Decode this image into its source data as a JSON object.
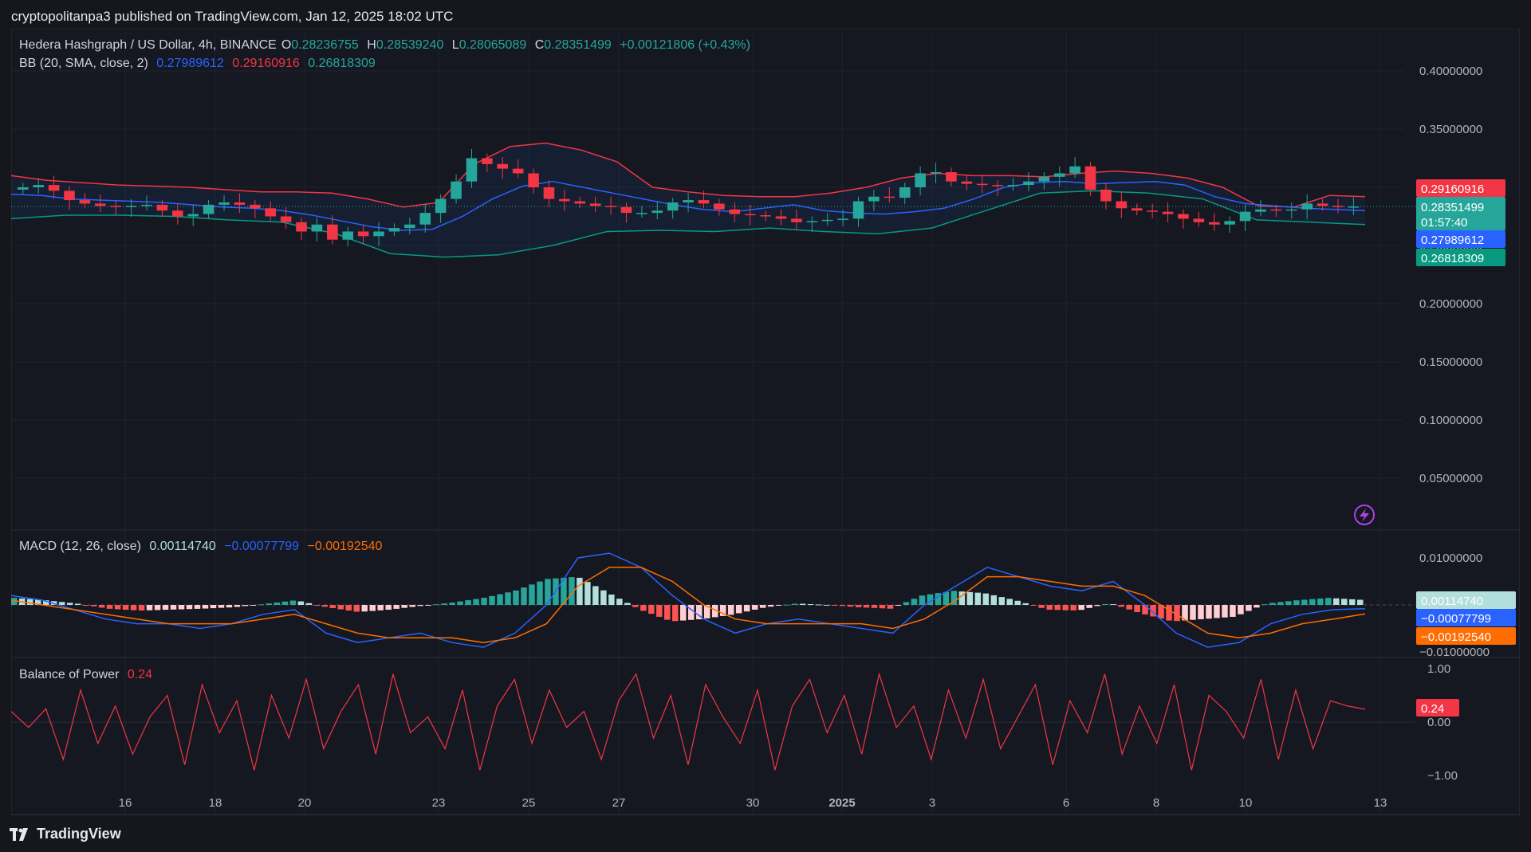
{
  "header": {
    "publisher": "cryptopolitanpa3 published on TradingView.com, Jan 12, 2025 18:02 UTC"
  },
  "legend_main": {
    "symbol": "Hedera Hashgraph / US Dollar, 4h, BINANCE",
    "o_label": "O",
    "o_value": "0.28236755",
    "h_label": "H",
    "h_value": "0.28539240",
    "l_label": "L",
    "l_value": "0.28065089",
    "c_label": "C",
    "c_value": "0.28351499",
    "change": "+0.00121806 (+0.43%)"
  },
  "legend_bb": {
    "label": "BB (20, SMA, close, 2)",
    "basis": "0.27989612",
    "upper": "0.29160916",
    "lower": "0.26818309"
  },
  "legend_macd": {
    "label": "MACD (12, 26, close)",
    "hist": "0.00114740",
    "macd": "−0.00077799",
    "signal": "−0.00192540"
  },
  "legend_bop": {
    "label": "Balance of Power",
    "value": "0.24"
  },
  "price_tags": {
    "upper": "0.29160916",
    "close": "0.28351499",
    "countdown": "01:57:40",
    "basis": "0.27989612",
    "lower": "0.26818309"
  },
  "macd_tags": {
    "hist": "0.00114740",
    "macd": "−0.00077799",
    "signal": "−0.00192540"
  },
  "bop_tag": "0.24",
  "brand": "TradingView",
  "colors": {
    "up": "#26a69a",
    "down": "#f23645",
    "bb_basis": "#2962ff",
    "bb_upper": "#f23645",
    "bb_lower": "#089981",
    "macd": "#2962ff",
    "signal": "#ff6d00",
    "bop": "#f23645",
    "hist_up_strong": "#26a69a",
    "hist_up_weak": "#b2dfdb",
    "hist_down_strong": "#ff5252",
    "hist_down_weak": "#ffcdd2"
  },
  "chart_data": [
    {
      "type": "candlestick",
      "name": "price",
      "y_ticks": [
        "0.40000000",
        "0.35000000",
        "0.30000000",
        "0.25000000",
        "0.20000000",
        "0.15000000",
        "0.10000000",
        "0.05000000"
      ],
      "y_tick_values": [
        0.4,
        0.35,
        0.3,
        0.25,
        0.2,
        0.15,
        0.1,
        0.05
      ],
      "x_ticks": [
        "16",
        "18",
        "20",
        "23",
        "25",
        "27",
        "30",
        "2025",
        "3",
        "6",
        "8",
        "10",
        "13"
      ],
      "close_series": [
        0.3,
        0.302,
        0.297,
        0.289,
        0.286,
        0.284,
        0.283,
        0.284,
        0.285,
        0.28,
        0.275,
        0.277,
        0.285,
        0.287,
        0.285,
        0.282,
        0.275,
        0.27,
        0.262,
        0.268,
        0.255,
        0.262,
        0.258,
        0.262,
        0.265,
        0.268,
        0.278,
        0.29,
        0.305,
        0.325,
        0.32,
        0.316,
        0.312,
        0.3,
        0.29,
        0.288,
        0.286,
        0.284,
        0.283,
        0.278,
        0.278,
        0.28,
        0.287,
        0.289,
        0.286,
        0.281,
        0.277,
        0.276,
        0.275,
        0.273,
        0.27,
        0.271,
        0.272,
        0.273,
        0.288,
        0.292,
        0.291,
        0.3,
        0.312,
        0.313,
        0.305,
        0.303,
        0.302,
        0.301,
        0.302,
        0.305,
        0.309,
        0.312,
        0.318,
        0.298,
        0.288,
        0.282,
        0.28,
        0.279,
        0.277,
        0.273,
        0.27,
        0.268,
        0.271,
        0.279,
        0.281,
        0.28,
        0.281,
        0.286,
        0.284,
        0.283,
        0.2835
      ],
      "bb_basis": [
        0.294,
        0.293,
        0.29,
        0.289,
        0.288,
        0.287,
        0.285,
        0.283,
        0.282,
        0.28,
        0.276,
        0.271,
        0.266,
        0.263,
        0.264,
        0.275,
        0.29,
        0.301,
        0.305,
        0.3,
        0.295,
        0.29,
        0.285,
        0.281,
        0.279,
        0.282,
        0.285,
        0.28,
        0.278,
        0.277,
        0.279,
        0.282,
        0.29,
        0.3,
        0.304,
        0.305,
        0.303,
        0.304,
        0.305,
        0.302,
        0.292,
        0.286,
        0.284,
        0.282,
        0.281,
        0.28
      ],
      "bb_upper": [
        0.31,
        0.306,
        0.304,
        0.302,
        0.301,
        0.3,
        0.298,
        0.296,
        0.296,
        0.295,
        0.29,
        0.283,
        0.287,
        0.32,
        0.335,
        0.338,
        0.332,
        0.322,
        0.3,
        0.296,
        0.293,
        0.292,
        0.292,
        0.295,
        0.3,
        0.308,
        0.312,
        0.31,
        0.31,
        0.309,
        0.312,
        0.314,
        0.312,
        0.308,
        0.3,
        0.284,
        0.283,
        0.293,
        0.292
      ],
      "bb_lower": [
        0.273,
        0.276,
        0.276,
        0.275,
        0.272,
        0.27,
        0.26,
        0.243,
        0.24,
        0.242,
        0.25,
        0.262,
        0.263,
        0.262,
        0.265,
        0.262,
        0.26,
        0.265,
        0.28,
        0.295,
        0.297,
        0.295,
        0.29,
        0.272,
        0.27,
        0.268
      ],
      "last_close": 0.28351499
    },
    {
      "type": "bar+line",
      "name": "MACD (12, 26, close)",
      "y_ticks": [
        "0.01000000",
        "−0.01000000"
      ],
      "y_tick_values": [
        0.01,
        -0.01
      ],
      "hist_last": 0.0011474,
      "macd_last": -0.00077799,
      "signal_last": -0.0019254,
      "macd": [
        0.002,
        0.001,
        -0.001,
        -0.003,
        -0.004,
        -0.004,
        -0.005,
        -0.004,
        -0.002,
        -0.001,
        -0.006,
        -0.008,
        -0.007,
        -0.006,
        -0.008,
        -0.009,
        -0.006,
        0.0,
        0.01,
        0.011,
        0.008,
        0.002,
        -0.003,
        -0.006,
        -0.004,
        -0.003,
        -0.004,
        -0.005,
        -0.006,
        0.0,
        0.004,
        0.008,
        0.006,
        0.004,
        0.003,
        0.005,
        0.0,
        -0.006,
        -0.009,
        -0.008,
        -0.004,
        -0.002,
        -0.001,
        -0.0008
      ],
      "signal": [
        0.001,
        0.0,
        -0.001,
        -0.002,
        -0.003,
        -0.004,
        -0.004,
        -0.004,
        -0.003,
        -0.002,
        -0.004,
        -0.006,
        -0.007,
        -0.007,
        -0.007,
        -0.008,
        -0.007,
        -0.004,
        0.004,
        0.008,
        0.008,
        0.005,
        0.0,
        -0.003,
        -0.004,
        -0.004,
        -0.004,
        -0.004,
        -0.005,
        -0.003,
        0.001,
        0.006,
        0.006,
        0.005,
        0.004,
        0.004,
        0.002,
        -0.002,
        -0.006,
        -0.007,
        -0.006,
        -0.004,
        -0.003,
        -0.0019
      ],
      "histogram": [
        0.0015,
        0.001,
        0.0003,
        -0.0008,
        -0.0012,
        -0.001,
        -0.0008,
        -0.0005,
        0.0002,
        0.001,
        -0.0005,
        -0.0015,
        -0.001,
        -0.0002,
        0.0005,
        0.0015,
        0.003,
        0.0055,
        0.006,
        0.0025,
        -0.001,
        -0.0035,
        -0.003,
        -0.002,
        -0.0005,
        0.0003,
        0.0,
        -0.0005,
        -0.0008,
        0.002,
        0.003,
        0.0025,
        0.001,
        -0.001,
        -0.0012,
        0.0004,
        -0.0018,
        -0.0035,
        -0.003,
        -0.0025,
        0.0003,
        0.001,
        0.0015,
        0.0011
      ]
    },
    {
      "type": "line",
      "name": "Balance of Power",
      "y_ticks": [
        "1.00",
        "0.00",
        "−1.00"
      ],
      "y_tick_values": [
        1.0,
        0.0,
        -1.0
      ],
      "last": 0.24,
      "values": [
        0.2,
        -0.1,
        0.25,
        -0.7,
        0.6,
        -0.4,
        0.3,
        -0.6,
        0.1,
        0.5,
        -0.8,
        0.7,
        -0.2,
        0.4,
        -0.9,
        0.5,
        -0.3,
        0.8,
        -0.5,
        0.2,
        0.7,
        -0.6,
        0.9,
        -0.2,
        0.1,
        -0.5,
        0.6,
        -0.9,
        0.3,
        0.8,
        -0.4,
        0.6,
        -0.1,
        0.2,
        -0.7,
        0.4,
        0.9,
        -0.3,
        0.5,
        -0.8,
        0.7,
        0.1,
        -0.4,
        0.6,
        -0.9,
        0.3,
        0.8,
        -0.2,
        0.5,
        -0.6,
        0.9,
        -0.1,
        0.3,
        -0.7,
        0.6,
        -0.3,
        0.8,
        -0.5,
        0.1,
        0.7,
        -0.8,
        0.4,
        -0.2,
        0.9,
        -0.6,
        0.3,
        -0.4,
        0.7,
        -0.9,
        0.5,
        0.2,
        -0.3,
        0.8,
        -0.7,
        0.6,
        -0.5,
        0.4,
        0.3,
        0.24
      ]
    }
  ]
}
